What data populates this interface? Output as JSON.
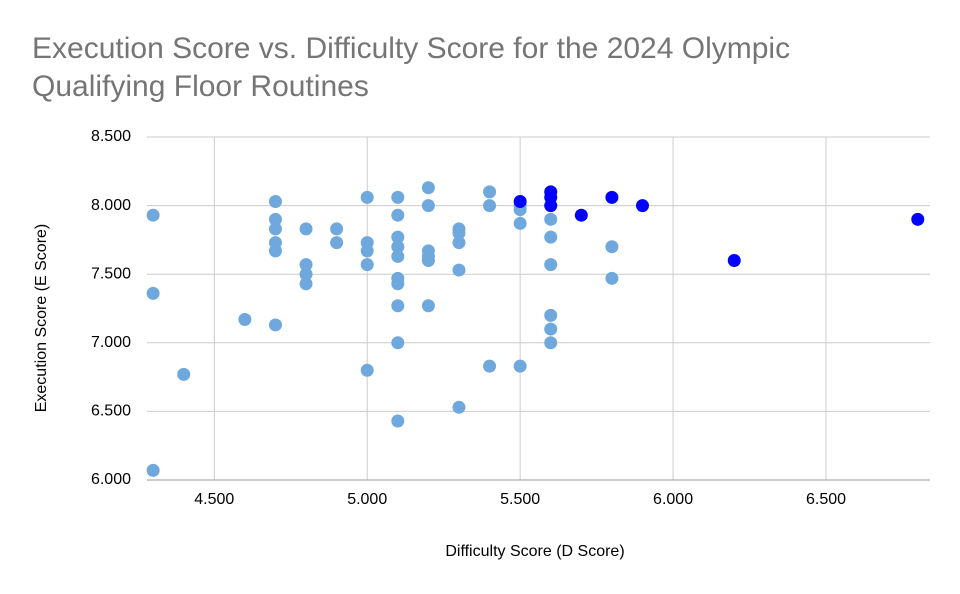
{
  "chart_data": {
    "type": "scatter",
    "title": "Execution Score vs. Difficulty Score for the 2024 Olympic Qualifying Floor Routines",
    "x_label": "Difficulty Score (D Score)",
    "y_label": "Execution Score (E Score)",
    "xlim": [
      4.28,
      6.84
    ],
    "ylim": [
      6,
      8.5
    ],
    "xticks": [
      {
        "value": 4.5,
        "label": "4.500"
      },
      {
        "value": 5,
        "label": "5.000"
      },
      {
        "value": 5.5,
        "label": "5.500"
      },
      {
        "value": 6,
        "label": "6.000"
      },
      {
        "value": 6.5,
        "label": "6.500"
      }
    ],
    "yticks": [
      {
        "value": 6,
        "label": "6.000"
      },
      {
        "value": 6.5,
        "label": "6.500"
      },
      {
        "value": 7,
        "label": "7.000"
      },
      {
        "value": 7.5,
        "label": "7.500"
      },
      {
        "value": 8,
        "label": "8.000"
      },
      {
        "value": 8.5,
        "label": "8.500"
      }
    ],
    "grid": true,
    "series": [
      {
        "color": "#6fa8dc",
        "x": [
          4.3,
          4.3,
          4.3,
          4.4,
          4.6,
          4.7,
          4.7,
          4.7,
          4.7,
          4.7,
          4.7,
          4.8,
          4.8,
          4.8,
          4.8,
          4.9,
          4.9,
          5.0,
          5.0,
          5.0,
          5.0,
          5.0,
          5.1,
          5.1,
          5.1,
          5.1,
          5.1,
          5.1,
          5.1,
          5.1,
          5.1,
          5.1,
          5.2,
          5.2,
          5.2,
          5.2,
          5.2,
          5.2,
          5.3,
          5.3,
          5.3,
          5.3,
          5.3,
          5.4,
          5.4,
          5.4,
          5.5,
          5.5,
          5.5,
          5.5,
          5.6,
          5.6,
          5.6,
          5.6,
          5.6,
          5.6,
          5.8,
          5.8
        ],
        "values": [
          7.93,
          7.36,
          6.07,
          6.77,
          7.17,
          8.03,
          7.9,
          7.83,
          7.73,
          7.67,
          7.13,
          7.83,
          7.57,
          7.5,
          7.43,
          7.83,
          7.73,
          8.06,
          7.73,
          7.67,
          7.57,
          6.8,
          8.06,
          7.93,
          7.77,
          7.7,
          7.63,
          7.47,
          7.43,
          7.27,
          7.0,
          6.43,
          8.13,
          8.0,
          7.67,
          7.63,
          7.6,
          7.27,
          7.83,
          7.8,
          7.73,
          7.53,
          6.53,
          8.1,
          8.0,
          6.83,
          8.0,
          7.97,
          7.87,
          6.83,
          7.9,
          7.77,
          7.57,
          7.2,
          7.1,
          7.0,
          7.7,
          7.47
        ]
      },
      {
        "color": "#0000ff",
        "x": [
          5.5,
          5.6,
          5.6,
          5.6,
          5.7,
          5.8,
          5.9,
          6.2,
          6.8
        ],
        "values": [
          8.03,
          8.1,
          8.06,
          8.0,
          7.93,
          8.06,
          8.0,
          7.6,
          7.9
        ]
      }
    ]
  }
}
